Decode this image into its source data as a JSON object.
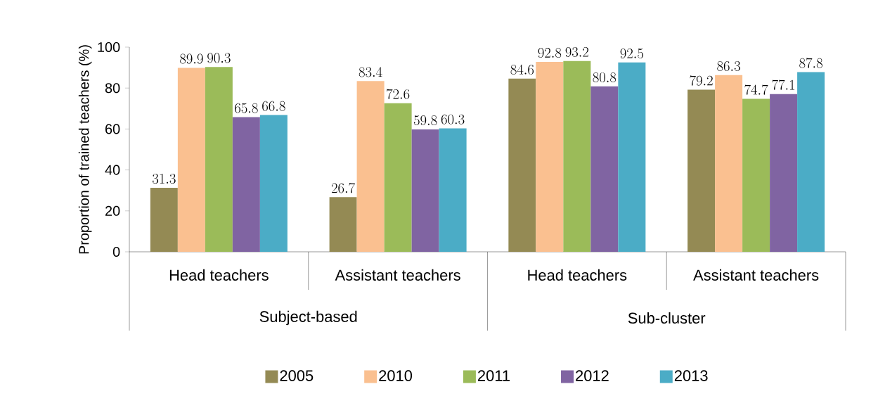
{
  "chart_data": {
    "type": "bar",
    "ylabel": "Proportion of trained teachers (%)",
    "categories": [
      "Head teachers",
      "Assistant teachers",
      "Head teachers",
      "Assistant teachers"
    ],
    "annotations": [
      "Subject-based",
      "Sub-cluster"
    ],
    "series": [
      {
        "name": "2005",
        "color": "#948a54",
        "values": [
          31.3,
          26.7,
          84.6,
          79.2
        ]
      },
      {
        "name": "2010",
        "color": "#fac090",
        "values": [
          89.9,
          83.4,
          92.8,
          86.3
        ]
      },
      {
        "name": "2011",
        "color": "#9bbb59",
        "values": [
          90.3,
          72.6,
          93.2,
          74.7
        ]
      },
      {
        "name": "2012",
        "color": "#8064a2",
        "values": [
          65.8,
          59.8,
          80.8,
          77.1
        ]
      },
      {
        "name": "2013",
        "color": "#4bacc6",
        "values": [
          66.8,
          60.3,
          92.5,
          87.8
        ]
      }
    ],
    "ylim": [
      0,
      100
    ],
    "yticks": [
      0,
      20,
      40,
      60,
      80,
      100
    ],
    "data_labels": true,
    "legend": "bottom",
    "grid": false
  }
}
